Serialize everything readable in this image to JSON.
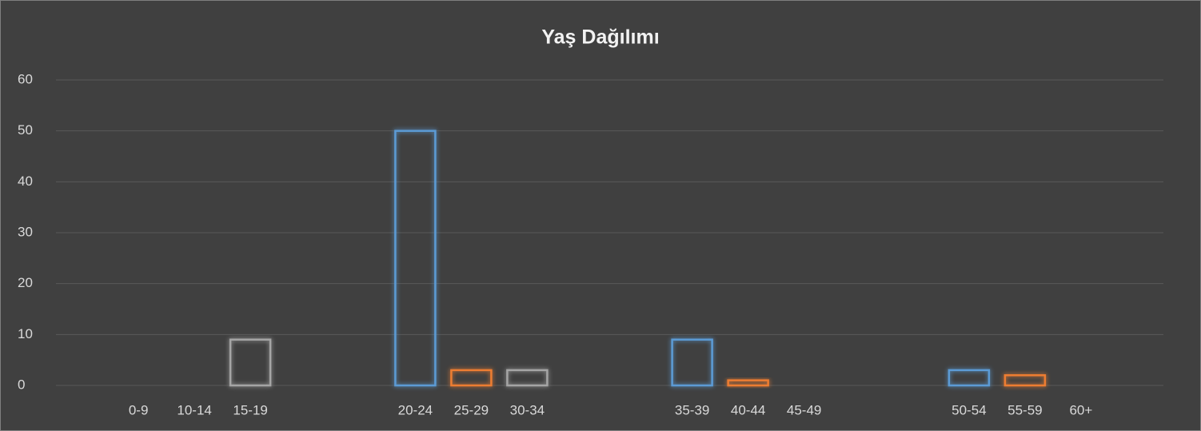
{
  "chart_data": {
    "type": "bar",
    "title": "Yaş Dağılımı",
    "categories": [
      "0-9",
      "10-14",
      "15-19",
      "20-24",
      "25-29",
      "30-34",
      "35-39",
      "40-44",
      "45-49",
      "50-54",
      "55-59",
      "60+"
    ],
    "values": [
      0,
      0,
      9,
      50,
      3,
      3,
      9,
      1,
      0,
      3,
      2,
      0
    ],
    "colors": [
      "#5b9bd5",
      "#ed7d31",
      "#a5a5a5",
      "#5b9bd5",
      "#ed7d31",
      "#a5a5a5",
      "#5b9bd5",
      "#ed7d31",
      "#a5a5a5",
      "#5b9bd5",
      "#ed7d31",
      "#a5a5a5"
    ],
    "ylim": [
      0,
      60
    ],
    "yticks": [
      0,
      10,
      20,
      30,
      40,
      50,
      60
    ],
    "grid": true
  }
}
